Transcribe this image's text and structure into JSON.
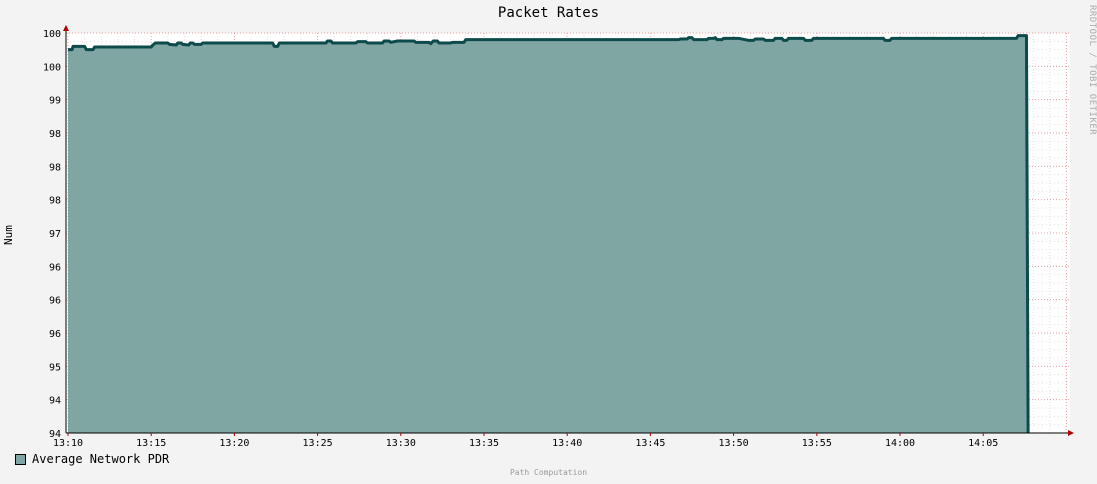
{
  "chart_data": {
    "type": "area",
    "title": "Packet Rates",
    "ylabel": "Num",
    "watermark": "RRDTOOL / TOBI OETIKER",
    "footer": "Path Computation",
    "y_tick_labels": [
      "94",
      "94",
      "95",
      "96",
      "96",
      "96",
      "97",
      "98",
      "98",
      "98",
      "99",
      "100",
      "100"
    ],
    "ylim": [
      94.0,
      100.0
    ],
    "x_tick_labels": [
      "13:10",
      "13:15",
      "13:20",
      "13:25",
      "13:30",
      "13:35",
      "13:40",
      "13:45",
      "13:50",
      "13:55",
      "14:00",
      "14:05"
    ],
    "xlim_minutes": [
      0,
      60
    ],
    "grid": true,
    "legend": "bottom-left",
    "series": [
      {
        "name": "Average Network PDR",
        "fill_color": "#80a6a4",
        "line_color": "#0d4a4a",
        "points": [
          [
            0.0,
            99.75
          ],
          [
            0.25,
            99.75
          ],
          [
            0.3,
            99.8
          ],
          [
            1.0,
            99.8
          ],
          [
            1.1,
            99.75
          ],
          [
            1.5,
            99.75
          ],
          [
            1.6,
            99.79
          ],
          [
            5.0,
            99.79
          ],
          [
            5.1,
            99.82
          ],
          [
            5.25,
            99.85
          ],
          [
            6.0,
            99.85
          ],
          [
            6.1,
            99.83
          ],
          [
            6.5,
            99.82
          ],
          [
            6.6,
            99.85
          ],
          [
            6.8,
            99.85
          ],
          [
            6.9,
            99.83
          ],
          [
            7.25,
            99.82
          ],
          [
            7.35,
            99.85
          ],
          [
            7.5,
            99.85
          ],
          [
            7.6,
            99.83
          ],
          [
            8.0,
            99.83
          ],
          [
            8.1,
            99.85
          ],
          [
            12.3,
            99.85
          ],
          [
            12.4,
            99.8
          ],
          [
            12.6,
            99.8
          ],
          [
            12.7,
            99.85
          ],
          [
            15.5,
            99.85
          ],
          [
            15.6,
            99.88
          ],
          [
            15.8,
            99.88
          ],
          [
            15.9,
            99.85
          ],
          [
            17.3,
            99.85
          ],
          [
            17.4,
            99.87
          ],
          [
            17.9,
            99.87
          ],
          [
            18.0,
            99.85
          ],
          [
            18.9,
            99.85
          ],
          [
            19.0,
            99.88
          ],
          [
            19.3,
            99.88
          ],
          [
            19.4,
            99.86
          ],
          [
            19.8,
            99.88
          ],
          [
            20.8,
            99.88
          ],
          [
            20.9,
            99.86
          ],
          [
            21.7,
            99.86
          ],
          [
            21.8,
            99.84
          ],
          [
            21.95,
            99.88
          ],
          [
            22.2,
            99.88
          ],
          [
            22.3,
            99.85
          ],
          [
            23.0,
            99.85
          ],
          [
            23.1,
            99.86
          ],
          [
            23.8,
            99.86
          ],
          [
            23.9,
            99.9
          ],
          [
            36.7,
            99.9
          ],
          [
            36.8,
            99.91
          ],
          [
            37.2,
            99.91
          ],
          [
            37.3,
            99.93
          ],
          [
            37.5,
            99.93
          ],
          [
            37.6,
            99.9
          ],
          [
            38.4,
            99.9
          ],
          [
            38.5,
            99.92
          ],
          [
            38.8,
            99.92
          ],
          [
            38.9,
            99.93
          ],
          [
            39.0,
            99.9
          ],
          [
            39.3,
            99.9
          ],
          [
            39.4,
            99.92
          ],
          [
            40.3,
            99.92
          ],
          [
            40.7,
            99.9
          ],
          [
            40.9,
            99.89
          ],
          [
            41.2,
            99.89
          ],
          [
            41.3,
            99.91
          ],
          [
            41.8,
            99.91
          ],
          [
            41.9,
            99.89
          ],
          [
            42.4,
            99.89
          ],
          [
            42.5,
            99.92
          ],
          [
            42.9,
            99.92
          ],
          [
            43.0,
            99.89
          ],
          [
            43.2,
            99.89
          ],
          [
            43.3,
            99.92
          ],
          [
            44.2,
            99.92
          ],
          [
            44.3,
            99.89
          ],
          [
            44.7,
            99.89
          ],
          [
            44.8,
            99.92
          ],
          [
            49.0,
            99.92
          ],
          [
            49.1,
            99.89
          ],
          [
            49.4,
            99.89
          ],
          [
            49.5,
            99.92
          ],
          [
            57.0,
            99.92
          ],
          [
            57.1,
            99.96
          ],
          [
            57.6,
            99.96
          ],
          [
            57.7,
            94.0
          ]
        ]
      }
    ]
  }
}
